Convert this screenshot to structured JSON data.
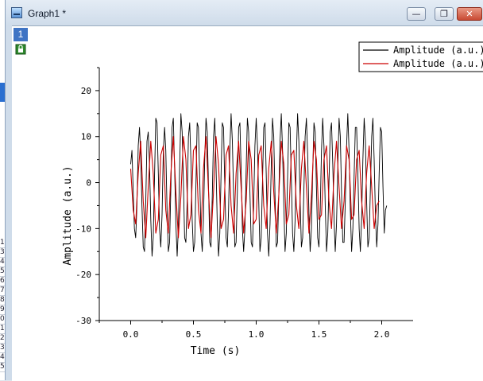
{
  "window": {
    "title": "Graph1 *",
    "layer_index": "1",
    "controls": {
      "minimize": "—",
      "restore": "❐",
      "close": "✕"
    }
  },
  "underlay_digits": [
    "1",
    "3",
    "4",
    "5",
    "6",
    "7",
    "8",
    "9",
    "0",
    "1",
    "2",
    "3",
    "4",
    "5"
  ],
  "colors": {
    "series_raw": "#000000",
    "series_smooth": "#cc0000",
    "layer_badge": "#3f74c4"
  },
  "chart_data": {
    "type": "line",
    "xlabel": "Time (s)",
    "ylabel": "Amplitude (a.u.)",
    "xlim": [
      -0.25,
      2.25
    ],
    "ylim": [
      -30,
      25
    ],
    "xticks": [
      0.0,
      0.5,
      1.0,
      1.5,
      2.0
    ],
    "xtick_labels": [
      "0.0",
      "0.5",
      "1.0",
      "1.5",
      "2.0"
    ],
    "yticks": [
      -30,
      -20,
      -10,
      0,
      10,
      20
    ],
    "ytick_labels": [
      "-30",
      "-20",
      "-10",
      "0",
      "10",
      "20"
    ],
    "legend_position": "top-right",
    "series": [
      {
        "name": "Amplitude (a.u.)",
        "color": "#000000",
        "x_start": 0.0,
        "x_step": 0.01,
        "values": [
          4,
          7,
          -2,
          -10,
          -12,
          -5,
          8,
          12,
          6,
          -5,
          -14,
          -15,
          -4,
          9,
          11,
          4,
          -8,
          -16,
          -12,
          1,
          14,
          13,
          2,
          -10,
          -14,
          -7,
          7,
          12,
          7,
          -6,
          -15,
          -13,
          -1,
          12,
          14,
          3,
          -9,
          -16,
          -10,
          3,
          15,
          11,
          0,
          -12,
          -13,
          -4,
          10,
          13,
          5,
          -8,
          -15,
          -13,
          0,
          13,
          12,
          1,
          -11,
          -15,
          -8,
          5,
          14,
          11,
          -1,
          -13,
          -14,
          -3,
          10,
          14,
          4,
          -9,
          -16,
          -11,
          2,
          13,
          12,
          -1,
          -12,
          -14,
          -6,
          7,
          15,
          9,
          -3,
          -14,
          -13,
          -2,
          12,
          13,
          3,
          -10,
          -15,
          -10,
          3,
          14,
          11,
          -2,
          -13,
          -14,
          -5,
          8,
          14,
          8,
          -4,
          -15,
          -12,
          0,
          12,
          13,
          2,
          -11,
          -16,
          -9,
          4,
          14,
          10,
          -3,
          -14,
          -13,
          -3,
          9,
          15,
          7,
          -5,
          -15,
          -11,
          1,
          13,
          12,
          1,
          -11,
          -15,
          -8,
          6,
          15,
          9,
          -4,
          -14,
          -12,
          -2,
          10,
          14,
          6,
          -7,
          -15,
          -10,
          2,
          13,
          11,
          -1,
          -12,
          -14,
          -6,
          7,
          14,
          8,
          -5,
          -15,
          -11,
          0,
          11,
          13,
          4,
          -8,
          -15,
          -9,
          3,
          14,
          10,
          -2,
          -13,
          -13,
          -4,
          8,
          15,
          7,
          -6,
          -15,
          -10,
          1,
          12,
          12,
          2,
          -10,
          -15,
          -8,
          5,
          14,
          9,
          -4,
          -14,
          -12,
          -1,
          10,
          14,
          5,
          -7,
          -14,
          -9,
          2,
          12,
          11,
          -1,
          -11,
          -6,
          -5
        ]
      },
      {
        "name": "Amplitude (a.u.)",
        "color": "#cc0000",
        "x_start": 0.0,
        "x_step": 0.02,
        "values": [
          3,
          -6,
          -9,
          2,
          9,
          -4,
          -12,
          -1,
          9,
          2,
          -11,
          -8,
          6,
          8,
          -6,
          -11,
          2,
          10,
          -2,
          -12,
          -3,
          10,
          5,
          -10,
          -7,
          7,
          8,
          -6,
          -11,
          3,
          10,
          -2,
          -12,
          -2,
          10,
          4,
          -10,
          -8,
          6,
          8,
          -5,
          -11,
          2,
          9,
          -1,
          -11,
          -4,
          9,
          5,
          -9,
          -8,
          6,
          8,
          -5,
          -10,
          3,
          9,
          -2,
          -11,
          -3,
          9,
          4,
          -9,
          -7,
          6,
          7,
          -5,
          -10,
          3,
          9,
          -1,
          -11,
          -3,
          9,
          5,
          -8,
          -7,
          5,
          8,
          -4,
          -10,
          2,
          9,
          -1,
          -10,
          -4,
          8,
          5,
          -8,
          -7,
          5,
          7,
          -4,
          -10,
          2,
          8,
          -1,
          -10,
          -5,
          -4
        ]
      }
    ]
  }
}
